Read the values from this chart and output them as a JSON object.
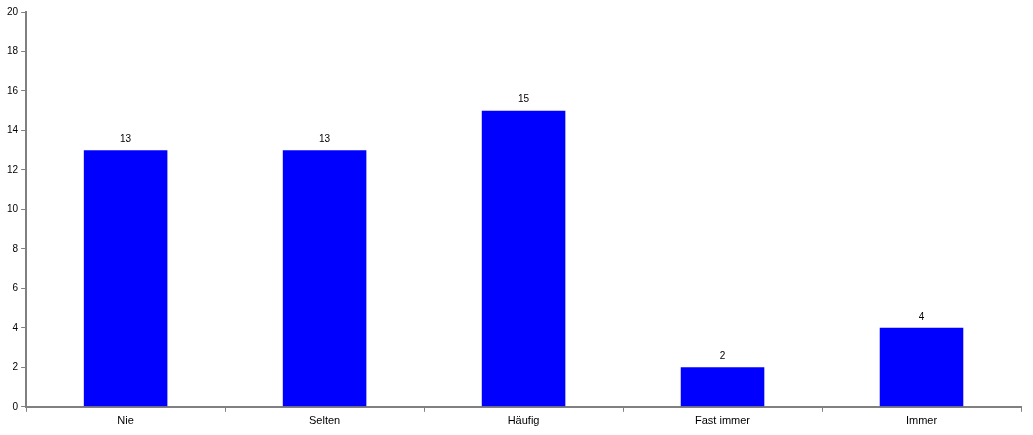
{
  "chart_data": {
    "type": "bar",
    "categories": [
      "Nie",
      "Selten",
      "Häufig",
      "Fast immer",
      "Immer"
    ],
    "values": [
      13,
      13,
      15,
      2,
      4
    ],
    "color": "#0000ff",
    "ylim": [
      0,
      20
    ],
    "yticks": [
      0,
      2,
      4,
      6,
      8,
      10,
      12,
      14,
      16,
      18,
      20
    ],
    "grid": false,
    "legend": false,
    "data_labels": true
  }
}
